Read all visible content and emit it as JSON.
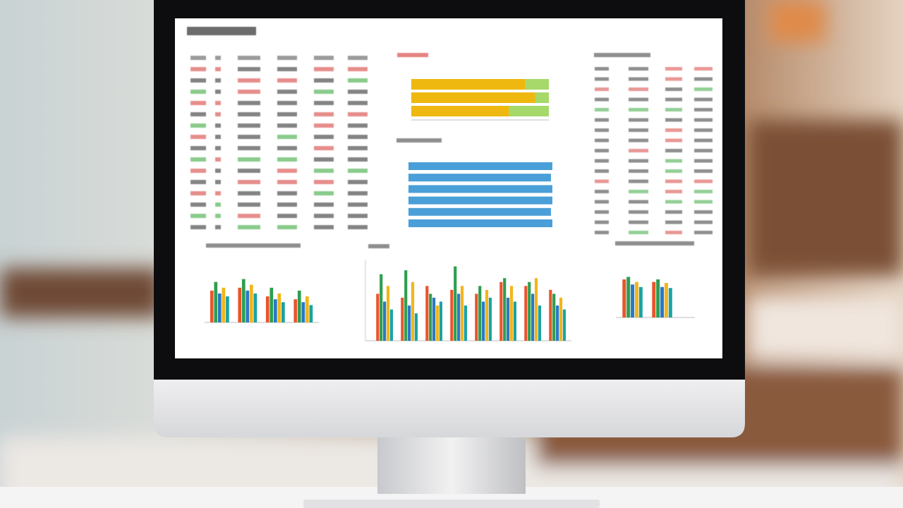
{
  "chart_data": [
    {
      "type": "stacked_bar",
      "xlim": [
        0,
        100
      ],
      "series": [
        {
          "color": "#efb810",
          "values": [
            83,
            90,
            71
          ]
        },
        {
          "color": "#a6d96a",
          "values": [
            17,
            10,
            29
          ]
        }
      ]
    },
    {
      "type": "bar",
      "xlim": [
        0,
        100
      ],
      "color": "#4a9fd8",
      "values": [
        100,
        99,
        100,
        100,
        99,
        100
      ]
    },
    {
      "type": "grouped_bar",
      "ylim": [
        0,
        100
      ],
      "categories": [
        null,
        null,
        null,
        null
      ],
      "series": [
        {
          "color": "#e8552c",
          "values": [
            55,
            60,
            45,
            40
          ]
        },
        {
          "color": "#2e9e4f",
          "values": [
            70,
            75,
            60,
            55
          ]
        },
        {
          "color": "#2a78c4",
          "values": [
            50,
            55,
            40,
            35
          ]
        },
        {
          "color": "#f2b51b",
          "values": [
            60,
            65,
            50,
            45
          ]
        },
        {
          "color": "#1aa3a3",
          "values": [
            45,
            50,
            35,
            30
          ]
        }
      ]
    },
    {
      "type": "grouped_bar",
      "ylim": [
        0,
        100
      ],
      "categories": [
        null,
        null,
        null,
        null,
        null,
        null,
        null,
        null
      ],
      "series": [
        {
          "color": "#e8552c",
          "values": [
            60,
            55,
            70,
            65,
            60,
            75,
            70,
            65
          ]
        },
        {
          "color": "#2e9e4f",
          "values": [
            85,
            90,
            60,
            95,
            70,
            80,
            75,
            60
          ]
        },
        {
          "color": "#2a78c4",
          "values": [
            50,
            45,
            55,
            60,
            50,
            55,
            60,
            45
          ]
        },
        {
          "color": "#f2b51b",
          "values": [
            70,
            75,
            45,
            70,
            65,
            70,
            80,
            55
          ]
        },
        {
          "color": "#1aa3a3",
          "values": [
            40,
            35,
            50,
            45,
            55,
            50,
            45,
            40
          ]
        }
      ]
    },
    {
      "type": "grouped_bar",
      "ylim": [
        0,
        100
      ],
      "categories": [
        null,
        null
      ],
      "series": [
        {
          "color": "#e8552c",
          "values": [
            75,
            70
          ]
        },
        {
          "color": "#2e9e4f",
          "values": [
            80,
            75
          ]
        },
        {
          "color": "#2a78c4",
          "values": [
            65,
            60
          ]
        },
        {
          "color": "#f2b51b",
          "values": [
            70,
            68
          ]
        },
        {
          "color": "#1aa3a3",
          "values": [
            60,
            58
          ]
        }
      ]
    }
  ]
}
